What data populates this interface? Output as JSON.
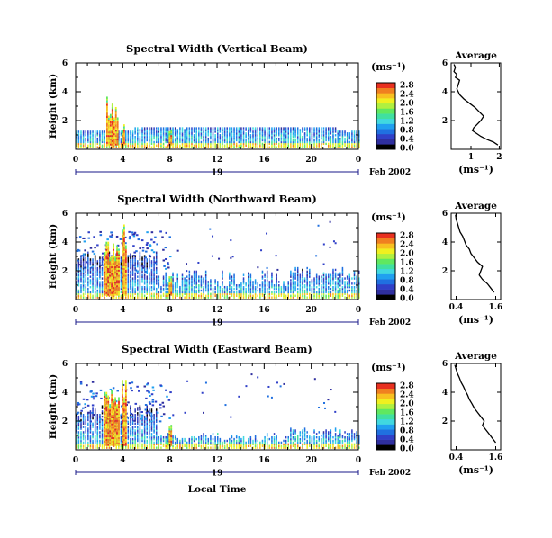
{
  "colors": {
    "colorbar": [
      "#000000",
      "#2f2f9f",
      "#3040c8",
      "#2070e0",
      "#20a0f0",
      "#40d8e0",
      "#40e0a0",
      "#60e860",
      "#b0f040",
      "#f0f020",
      "#f8c020",
      "#f08020",
      "#e83020"
    ],
    "line": "#000000"
  },
  "shared": {
    "date_label": "Feb 2002",
    "day_label": "19",
    "xlabel": "Local Time",
    "ylabel": "Height (km)",
    "avg_title": "Average",
    "unit_label": "(ms⁻¹)",
    "x_ticks": [
      "0",
      "4",
      "8",
      "12",
      "16",
      "20",
      "0"
    ],
    "y_ticks": [
      "2",
      "4",
      "6"
    ]
  },
  "chart_data": [
    {
      "type": "heatmap",
      "title": "Spectral Width (Vertical Beam)",
      "xlabel": "",
      "ylabel": "Height (km)",
      "xlim": [
        0,
        24
      ],
      "ylim": [
        0,
        6
      ],
      "colorbar_label": "(ms⁻¹)",
      "colorbar_ticks": [
        "0.0",
        "0.4",
        "0.8",
        "1.2",
        "1.6",
        "2.0",
        "2.4",
        "2.8"
      ],
      "colorbar_range": [
        0,
        3.0
      ],
      "profile": {
        "title": "Average",
        "xlabel": "(ms⁻¹)",
        "x_ticks": [
          "1",
          "2"
        ],
        "xlim": [
          0.3,
          2.05
        ],
        "ylim": [
          0,
          6
        ],
        "width": [
          1.95,
          1.8,
          1.55,
          1.35,
          1.2,
          1.05,
          1.1,
          1.2,
          1.35,
          1.45,
          1.3,
          1.15,
          0.95,
          0.75,
          0.6,
          0.55,
          0.5,
          0.55,
          0.6,
          0.45,
          0.5,
          0.4,
          0.45,
          0.4
        ],
        "height": [
          0.3,
          0.5,
          0.7,
          0.9,
          1.1,
          1.3,
          1.5,
          1.7,
          2.0,
          2.3,
          2.6,
          2.9,
          3.2,
          3.5,
          3.8,
          4.0,
          4.2,
          4.5,
          4.8,
          5.0,
          5.2,
          5.4,
          5.7,
          5.9
        ]
      }
    },
    {
      "type": "heatmap",
      "title": "Spectral Width (Northward Beam)",
      "xlabel": "",
      "ylabel": "Height (km)",
      "xlim": [
        0,
        24
      ],
      "ylim": [
        0,
        6
      ],
      "colorbar_label": "(ms⁻¹)",
      "colorbar_ticks": [
        "0.0",
        "0.4",
        "0.8",
        "1.2",
        "1.6",
        "2.0",
        "2.4",
        "2.8"
      ],
      "colorbar_range": [
        0,
        3.0
      ],
      "profile": {
        "title": "Average",
        "xlabel": "(ms⁻¹)",
        "x_ticks": [
          "0.4",
          "1.6"
        ],
        "xlim": [
          0.25,
          1.75
        ],
        "ylim": [
          0,
          6
        ],
        "width": [
          1.55,
          1.45,
          1.35,
          1.2,
          1.1,
          1.15,
          1.2,
          1.05,
          0.95,
          0.85,
          0.8,
          0.7,
          0.65,
          0.6,
          0.52,
          0.48,
          0.44,
          0.4,
          0.38
        ],
        "height": [
          0.5,
          0.8,
          1.1,
          1.4,
          1.7,
          2.0,
          2.3,
          2.6,
          2.9,
          3.2,
          3.5,
          3.8,
          4.1,
          4.4,
          4.7,
          5.0,
          5.3,
          5.6,
          5.9
        ]
      }
    },
    {
      "type": "heatmap",
      "title": "Spectral Width (Eastward Beam)",
      "xlabel": "Local Time",
      "ylabel": "Height (km)",
      "xlim": [
        0,
        24
      ],
      "ylim": [
        0,
        6
      ],
      "colorbar_label": "(ms⁻¹)",
      "colorbar_ticks": [
        "0.0",
        "0.4",
        "0.8",
        "1.2",
        "1.6",
        "2.0",
        "2.4",
        "2.8"
      ],
      "colorbar_range": [
        0,
        3.0
      ],
      "profile": {
        "title": "Average",
        "xlabel": "(ms⁻¹)",
        "x_ticks": [
          "0.4",
          "1.6"
        ],
        "xlim": [
          0.25,
          1.75
        ],
        "ylim": [
          0,
          6
        ],
        "width": [
          1.6,
          1.5,
          1.4,
          1.3,
          1.2,
          1.25,
          1.15,
          1.05,
          0.95,
          0.88,
          0.8,
          0.75,
          0.68,
          0.62,
          0.55,
          0.5,
          0.44,
          0.4,
          0.36
        ],
        "height": [
          0.5,
          0.8,
          1.1,
          1.4,
          1.7,
          2.0,
          2.3,
          2.6,
          2.9,
          3.2,
          3.5,
          3.8,
          4.1,
          4.4,
          4.7,
          5.0,
          5.3,
          5.6,
          5.9
        ]
      }
    }
  ]
}
